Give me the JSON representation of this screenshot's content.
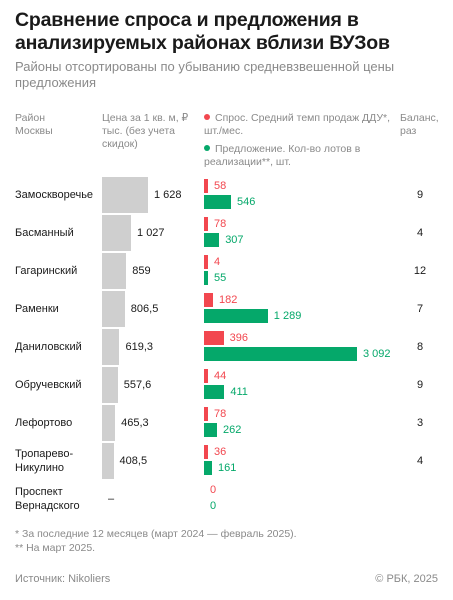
{
  "title": "Сравнение спроса и предложения в анализируемых районах вблизи ВУЗов",
  "subtitle": "Районы отсортированы по убыванию средневзвешенной цены предложения",
  "headers": {
    "district": "Район Москвы",
    "price": "Цена за 1 кв. м, ₽ тыс. (без учета скидок)",
    "ratio": "Баланс, раз"
  },
  "legend": {
    "demand": "Спрос. Средний темп продаж ДДУ*, шт./мес.",
    "supply": "Предложение. Кол-во лотов в реализации**, шт."
  },
  "notes": [
    "* За последние 12 месяцев (март 2024 — февраль 2025).",
    "** На март 2025."
  ],
  "source": "Источник: Nikoliers",
  "copyright": "© РБК, 2025",
  "colors": {
    "demand": "#f2474f",
    "supply": "#05a86a",
    "price_bar": "#cfcfcf"
  },
  "chart_data": {
    "type": "bar",
    "categories": [
      "Замоскворечье",
      "Басманный",
      "Гагаринский",
      "Раменки",
      "Даниловский",
      "Обручевский",
      "Лефортово",
      "Тропарево-Никулино",
      "Проспект Вернадского"
    ],
    "price_labels": [
      "1 628",
      "1 027",
      "859",
      "806,5",
      "619,3",
      "557,6",
      "465,3",
      "408,5",
      "–"
    ],
    "price_values": [
      1628,
      1027,
      859,
      806.5,
      619.3,
      557.6,
      465.3,
      408.5,
      null
    ],
    "demand_labels": [
      "58",
      "78",
      "4",
      "182",
      "396",
      "44",
      "78",
      "36",
      "0"
    ],
    "demand_values": [
      58,
      78,
      4,
      182,
      396,
      44,
      78,
      36,
      0
    ],
    "supply_labels": [
      "546",
      "307",
      "55",
      "1 289",
      "3 092",
      "411",
      "262",
      "161",
      "0"
    ],
    "supply_values": [
      546,
      307,
      55,
      1289,
      3092,
      411,
      262,
      161,
      0
    ],
    "ratio": [
      "9",
      "4",
      "12",
      "7",
      "8",
      "9",
      "3",
      "4",
      ""
    ]
  }
}
